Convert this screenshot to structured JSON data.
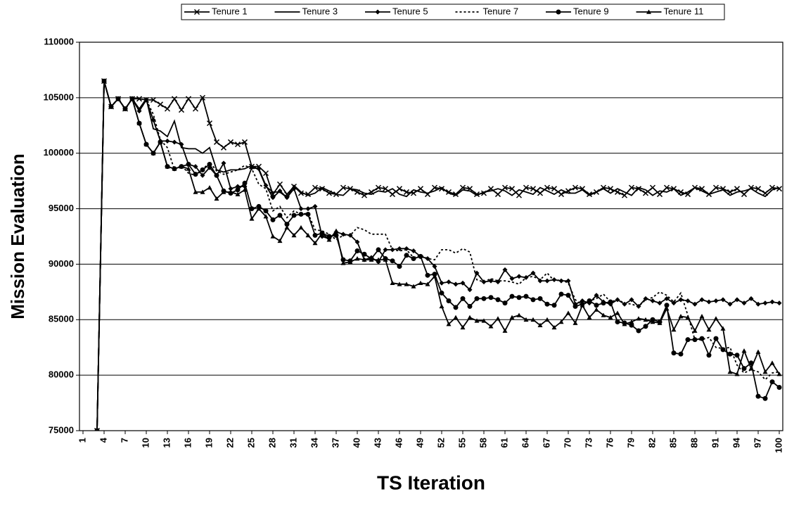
{
  "chart_data": {
    "type": "line",
    "y_label": "Mission Evaluation",
    "x_label": "TS Iteration",
    "categories": [
      "1",
      null,
      null,
      "4",
      null,
      null,
      "7",
      null,
      null,
      "10",
      null,
      null,
      "13",
      null,
      null,
      "16",
      null,
      null,
      "19",
      null,
      null,
      "22",
      null,
      null,
      "25",
      null,
      null,
      "28",
      null,
      null,
      "31",
      null,
      null,
      "34",
      null,
      null,
      "37",
      null,
      null,
      "40",
      null,
      null,
      "43",
      null,
      null,
      "46",
      null,
      null,
      "49",
      null,
      null,
      "52",
      null,
      null,
      "55",
      null,
      null,
      "58",
      null,
      null,
      "61",
      null,
      null,
      "64",
      null,
      null,
      "67",
      null,
      null,
      "70",
      null,
      null,
      "73",
      null,
      null,
      "76",
      null,
      null,
      "79",
      null,
      null,
      "82",
      null,
      null,
      "85",
      null,
      null,
      "88",
      null,
      null,
      "91",
      null,
      null,
      "94",
      null,
      null,
      "97",
      null,
      null,
      "100"
    ],
    "ylim": [
      75000,
      110000
    ],
    "yticks": [
      75000,
      80000,
      85000,
      90000,
      95000,
      100000,
      105000,
      110000
    ],
    "grid": true,
    "legend": "top",
    "series": [
      {
        "name": "Tenure 1",
        "color": "#000000",
        "marker": "cross",
        "dash": "solid",
        "values": [
          null,
          null,
          75000,
          106500,
          104200,
          104900,
          104000,
          104900,
          104900,
          104800,
          104800,
          104400,
          104000,
          104900,
          103900,
          104900,
          104000,
          105000,
          102700,
          101000,
          100500,
          101000,
          100800,
          101000,
          98800,
          98800,
          98200,
          96300,
          97200,
          96300,
          97000,
          96400,
          96300,
          96900,
          96800,
          96400,
          96300,
          96900,
          96800,
          96500,
          96200,
          96500,
          96900,
          96800,
          96300,
          96800,
          96500,
          96400,
          96800,
          96300,
          96900,
          96800,
          96500,
          96300,
          96900,
          96800,
          96300,
          96400,
          96800,
          96300,
          96900,
          96800,
          96200,
          96900,
          96800,
          96400,
          96900,
          96800,
          96300,
          96600,
          96900,
          96800,
          96300,
          96500,
          96900,
          96800,
          96500,
          96200,
          96900,
          96800,
          96400,
          96900,
          96300,
          96900,
          96800,
          96500,
          96300,
          96900,
          96800,
          96300,
          96900,
          96800,
          96500,
          96800,
          96300,
          96900,
          96800,
          96400,
          96900,
          96800
        ]
      },
      {
        "name": "Tenure 3",
        "color": "#000000",
        "marker": "none",
        "dash": "solid",
        "values": [
          null,
          null,
          75000,
          106500,
          104200,
          104900,
          104000,
          104900,
          104000,
          104900,
          102200,
          102000,
          101500,
          102900,
          100500,
          100400,
          100400,
          100000,
          100500,
          98500,
          98300,
          98500,
          98500,
          98600,
          98900,
          98500,
          97000,
          96500,
          96500,
          96000,
          97100,
          96500,
          96200,
          96400,
          96900,
          96600,
          96300,
          96200,
          96800,
          96700,
          96400,
          96300,
          96600,
          96500,
          96800,
          96300,
          96100,
          96700,
          96500,
          96400,
          96600,
          96900,
          96400,
          96200,
          96700,
          96600,
          96200,
          96500,
          96600,
          96800,
          96600,
          96200,
          96700,
          96500,
          96300,
          96900,
          96600,
          96300,
          96700,
          96400,
          96400,
          96700,
          96200,
          96500,
          96800,
          96400,
          96800,
          96500,
          96200,
          96900,
          96700,
          96200,
          96600,
          96500,
          96800,
          96200,
          96500,
          96900,
          96600,
          96300,
          96500,
          96700,
          96200,
          96500,
          96600,
          96800,
          96400,
          96100,
          96700,
          96900
        ]
      },
      {
        "name": "Tenure 5",
        "color": "#000000",
        "marker": "diamond",
        "dash": "solid",
        "values": [
          null,
          null,
          75000,
          106500,
          104200,
          104900,
          104000,
          104900,
          103800,
          104800,
          103000,
          101100,
          101100,
          101000,
          100800,
          99000,
          98800,
          98000,
          98700,
          98000,
          99100,
          96800,
          97000,
          97000,
          98700,
          98600,
          97100,
          96000,
          96600,
          96000,
          96800,
          95000,
          95000,
          95200,
          92500,
          92300,
          92900,
          92700,
          92600,
          92000,
          90400,
          90600,
          90200,
          91300,
          91300,
          91400,
          91400,
          91200,
          90700,
          90500,
          89800,
          88300,
          88400,
          88200,
          88300,
          87700,
          89200,
          88400,
          88500,
          88400,
          89500,
          88700,
          88900,
          88800,
          89200,
          88500,
          88500,
          88600,
          88500,
          88500,
          86400,
          86700,
          86500,
          87200,
          86600,
          86400,
          86800,
          86400,
          86800,
          86200,
          86900,
          86700,
          86500,
          86900,
          86500,
          86800,
          86700,
          86400,
          86800,
          86600,
          86700,
          86800,
          86400,
          86800,
          86500,
          86900,
          86400,
          86500,
          86600,
          86500
        ]
      },
      {
        "name": "Tenure 7",
        "color": "#000000",
        "marker": "none",
        "dash": "dotted",
        "values": [
          null,
          null,
          75000,
          106500,
          104200,
          104900,
          104000,
          104900,
          103800,
          104800,
          103500,
          101200,
          100500,
          98500,
          98900,
          98200,
          98000,
          98500,
          99200,
          98400,
          98100,
          98300,
          98500,
          98900,
          98600,
          97200,
          96800,
          94800,
          95200,
          94200,
          94800,
          94500,
          94600,
          93100,
          93000,
          92700,
          92200,
          92600,
          92600,
          93300,
          93100,
          92700,
          92700,
          92700,
          91300,
          91200,
          91300,
          90600,
          90800,
          90500,
          90400,
          91300,
          91300,
          91000,
          91400,
          91100,
          88600,
          88400,
          88700,
          88500,
          88500,
          88400,
          88200,
          88800,
          88900,
          88600,
          89200,
          88500,
          88600,
          88300,
          86800,
          86300,
          86700,
          86900,
          87300,
          86600,
          86800,
          86500,
          86400,
          86200,
          86800,
          87000,
          87500,
          87200,
          86600,
          87400,
          85400,
          83200,
          83200,
          83400,
          82500,
          82400,
          82500,
          80900,
          80200,
          80500,
          80300,
          79600,
          80200,
          80300
        ]
      },
      {
        "name": "Tenure 9",
        "color": "#000000",
        "marker": "circle",
        "dash": "solid",
        "values": [
          null,
          null,
          75000,
          106500,
          104200,
          104900,
          104000,
          104900,
          102700,
          100800,
          100000,
          101000,
          98800,
          98600,
          98800,
          99000,
          98100,
          98500,
          99000,
          98000,
          96600,
          96400,
          96700,
          97300,
          95000,
          95200,
          94800,
          94000,
          94400,
          93600,
          94400,
          94500,
          94500,
          92600,
          92800,
          92500,
          92600,
          90400,
          90300,
          91200,
          90900,
          90500,
          91300,
          90500,
          90300,
          89800,
          90800,
          90500,
          90700,
          89000,
          89100,
          87400,
          86700,
          86100,
          86900,
          86200,
          86900,
          86900,
          87000,
          86800,
          86500,
          87100,
          87000,
          87100,
          86800,
          86900,
          86400,
          86300,
          87300,
          87200,
          86200,
          86400,
          86700,
          86300,
          86500,
          86600,
          84800,
          84700,
          84500,
          84000,
          84400,
          85000,
          84800,
          86300,
          82000,
          81900,
          83200,
          83200,
          83300,
          81800,
          83300,
          82300,
          81900,
          81800,
          80600,
          81100,
          78100,
          77900,
          79400,
          78900
        ]
      },
      {
        "name": "Tenure 11",
        "color": "#000000",
        "marker": "triangle",
        "dash": "solid",
        "values": [
          null,
          null,
          75000,
          106500,
          104200,
          104900,
          104000,
          104900,
          102700,
          100800,
          100000,
          101000,
          98800,
          98600,
          98800,
          98600,
          96500,
          96500,
          96900,
          95900,
          96500,
          96500,
          96300,
          96700,
          94100,
          95000,
          94300,
          92500,
          92100,
          93300,
          92600,
          93300,
          92600,
          91900,
          92800,
          92200,
          93000,
          90100,
          90200,
          90500,
          90400,
          90400,
          90400,
          90400,
          88300,
          88200,
          88200,
          88000,
          88300,
          88200,
          88900,
          86200,
          84600,
          85200,
          84300,
          85200,
          84900,
          84900,
          84400,
          85100,
          84000,
          85200,
          85400,
          85000,
          85000,
          84500,
          85000,
          84300,
          84800,
          85600,
          84700,
          86300,
          85200,
          85900,
          85400,
          85200,
          85600,
          84600,
          84800,
          85100,
          85000,
          84800,
          84700,
          86000,
          84100,
          85300,
          85200,
          84000,
          85300,
          84100,
          85100,
          84200,
          80300,
          80100,
          82200,
          80600,
          82100,
          80300,
          81100,
          80100
        ]
      }
    ]
  }
}
